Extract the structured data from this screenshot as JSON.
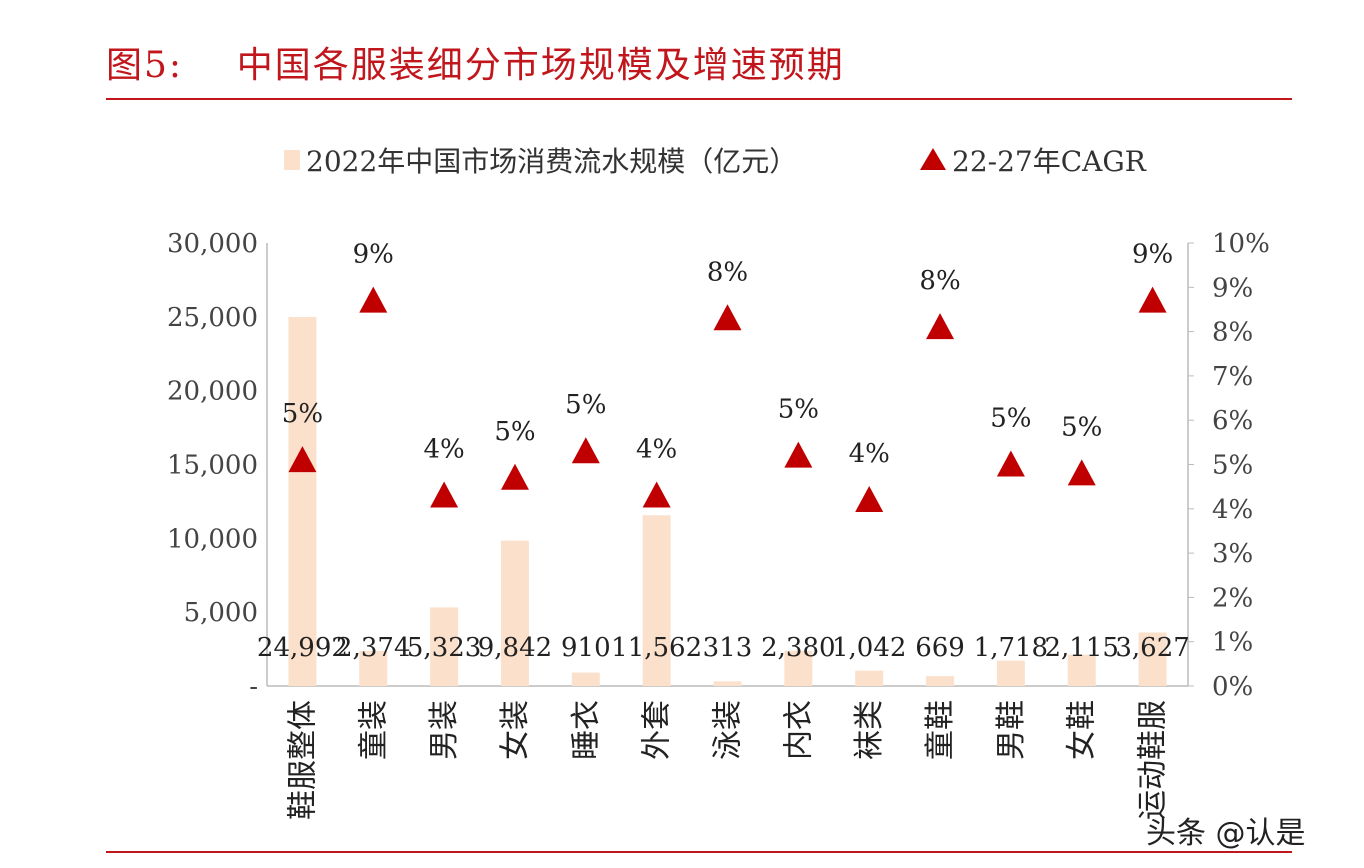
{
  "header": {
    "title": "图5:    中国各服装细分市场规模及增速预期"
  },
  "watermark": "头条 @认是",
  "colors": {
    "bar": "#fbe0cc",
    "marker": "#c00000",
    "title": "#c0161c"
  },
  "chart_data": {
    "type": "bar",
    "categories": [
      "鞋服整体",
      "童装",
      "男装",
      "女装",
      "睡衣",
      "外套",
      "泳装",
      "内衣",
      "袜类",
      "童鞋",
      "男鞋",
      "女鞋",
      "运动鞋服"
    ],
    "series": [
      {
        "name": "2022年中国市场消费流水规模（亿元）",
        "type": "bar",
        "axis": "left",
        "values": [
          24992,
          2374,
          5323,
          9842,
          910,
          11562,
          313,
          2380,
          1042,
          669,
          1718,
          2115,
          3627
        ],
        "labels": [
          "24,992",
          "2,374",
          "5,323",
          "9,842",
          "910",
          "11,562",
          "313",
          "2,380",
          "1,042",
          "669",
          "1,718",
          "2,115",
          "3,627"
        ]
      },
      {
        "name": "22-27年CAGR",
        "type": "scatter",
        "marker": "triangle",
        "axis": "right",
        "values": [
          5.1,
          8.7,
          4.3,
          4.7,
          5.3,
          4.3,
          8.3,
          5.2,
          4.2,
          8.1,
          5.0,
          4.8,
          8.7
        ],
        "labels": [
          "5%",
          "9%",
          "4%",
          "5%",
          "5%",
          "4%",
          "8%",
          "5%",
          "4%",
          "8%",
          "5%",
          "5%",
          "9%"
        ]
      }
    ],
    "y_left": {
      "range": [
        0,
        30000
      ],
      "ticks": [
        "-",
        "5,000",
        "10,000",
        "15,000",
        "20,000",
        "25,000",
        "30,000"
      ]
    },
    "y_right": {
      "range": [
        0,
        10
      ],
      "ticks": [
        "0%",
        "1%",
        "2%",
        "3%",
        "4%",
        "5%",
        "6%",
        "7%",
        "8%",
        "9%",
        "10%"
      ]
    },
    "legend": "top",
    "grid": false
  }
}
